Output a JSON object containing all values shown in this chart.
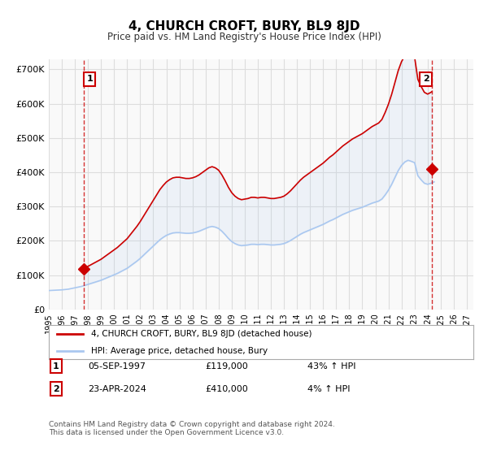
{
  "title": "4, CHURCH CROFT, BURY, BL9 8JD",
  "subtitle": "Price paid vs. HM Land Registry's House Price Index (HPI)",
  "ylabel": "",
  "xlim_start": 1995.0,
  "xlim_end": 2027.5,
  "ylim": [
    0,
    730000
  ],
  "yticks": [
    0,
    100000,
    200000,
    300000,
    400000,
    500000,
    600000,
    700000
  ],
  "ytick_labels": [
    "£0",
    "£100K",
    "£200K",
    "£300K",
    "£400K",
    "£500K",
    "£600K",
    "£700K"
  ],
  "xticks": [
    1995,
    1996,
    1997,
    1998,
    1999,
    2000,
    2001,
    2002,
    2003,
    2004,
    2005,
    2006,
    2007,
    2008,
    2009,
    2010,
    2011,
    2012,
    2013,
    2014,
    2015,
    2016,
    2017,
    2018,
    2019,
    2020,
    2021,
    2022,
    2023,
    2024,
    2025,
    2026,
    2027
  ],
  "background_color": "#ffffff",
  "plot_bg_color": "#f9f9f9",
  "grid_color": "#dddddd",
  "hpi_line_color": "#aac8f0",
  "price_line_color": "#cc0000",
  "marker1_color": "#cc0000",
  "marker2_color": "#cc0000",
  "dashed_line_color": "#cc0000",
  "sale1_year": 1997.68,
  "sale1_price": 119000,
  "sale2_year": 2024.31,
  "sale2_price": 410000,
  "legend_label1": "4, CHURCH CROFT, BURY, BL9 8JD (detached house)",
  "legend_label2": "HPI: Average price, detached house, Bury",
  "annotation1_label": "1",
  "annotation2_label": "2",
  "table_row1": [
    "1",
    "05-SEP-1997",
    "£119,000",
    "43% ↑ HPI"
  ],
  "table_row2": [
    "2",
    "23-APR-2024",
    "£410,000",
    "4% ↑ HPI"
  ],
  "footer": "Contains HM Land Registry data © Crown copyright and database right 2024.\nThis data is licensed under the Open Government Licence v3.0.",
  "hpi_data_x": [
    1995.0,
    1995.25,
    1995.5,
    1995.75,
    1996.0,
    1996.25,
    1996.5,
    1996.75,
    1997.0,
    1997.25,
    1997.5,
    1997.75,
    1998.0,
    1998.25,
    1998.5,
    1998.75,
    1999.0,
    1999.25,
    1999.5,
    1999.75,
    2000.0,
    2000.25,
    2000.5,
    2000.75,
    2001.0,
    2001.25,
    2001.5,
    2001.75,
    2002.0,
    2002.25,
    2002.5,
    2002.75,
    2003.0,
    2003.25,
    2003.5,
    2003.75,
    2004.0,
    2004.25,
    2004.5,
    2004.75,
    2005.0,
    2005.25,
    2005.5,
    2005.75,
    2006.0,
    2006.25,
    2006.5,
    2006.75,
    2007.0,
    2007.25,
    2007.5,
    2007.75,
    2008.0,
    2008.25,
    2008.5,
    2008.75,
    2009.0,
    2009.25,
    2009.5,
    2009.75,
    2010.0,
    2010.25,
    2010.5,
    2010.75,
    2011.0,
    2011.25,
    2011.5,
    2011.75,
    2012.0,
    2012.25,
    2012.5,
    2012.75,
    2013.0,
    2013.25,
    2013.5,
    2013.75,
    2014.0,
    2014.25,
    2014.5,
    2014.75,
    2015.0,
    2015.25,
    2015.5,
    2015.75,
    2016.0,
    2016.25,
    2016.5,
    2016.75,
    2017.0,
    2017.25,
    2017.5,
    2017.75,
    2018.0,
    2018.25,
    2018.5,
    2018.75,
    2019.0,
    2019.25,
    2019.5,
    2019.75,
    2020.0,
    2020.25,
    2020.5,
    2020.75,
    2021.0,
    2021.25,
    2021.5,
    2021.75,
    2022.0,
    2022.25,
    2022.5,
    2022.75,
    2023.0,
    2023.25,
    2023.5,
    2023.75,
    2024.0,
    2024.25,
    2024.5
  ],
  "hpi_data_y": [
    55000,
    55500,
    56000,
    56500,
    57000,
    58000,
    59000,
    61000,
    63000,
    65000,
    67000,
    70000,
    73000,
    76000,
    79000,
    82000,
    85000,
    89000,
    93000,
    97000,
    101000,
    105000,
    110000,
    115000,
    120000,
    127000,
    134000,
    141000,
    149000,
    158000,
    167000,
    176000,
    185000,
    194000,
    203000,
    210000,
    216000,
    220000,
    223000,
    224000,
    224000,
    223000,
    222000,
    222000,
    223000,
    225000,
    228000,
    232000,
    236000,
    240000,
    242000,
    240000,
    236000,
    228000,
    218000,
    207000,
    198000,
    192000,
    188000,
    186000,
    187000,
    188000,
    190000,
    190000,
    189000,
    190000,
    190000,
    189000,
    188000,
    188000,
    189000,
    190000,
    192000,
    196000,
    201000,
    207000,
    213000,
    219000,
    224000,
    228000,
    232000,
    236000,
    240000,
    244000,
    248000,
    253000,
    258000,
    262000,
    267000,
    272000,
    277000,
    281000,
    285000,
    289000,
    292000,
    295000,
    298000,
    302000,
    306000,
    310000,
    313000,
    316000,
    322000,
    334000,
    348000,
    365000,
    385000,
    405000,
    420000,
    430000,
    435000,
    432000,
    428000,
    390000,
    378000,
    368000,
    365000,
    368000,
    372000
  ],
  "price_data_x": [
    1997.68,
    1997.68,
    2024.31
  ],
  "price_data_y": [
    119000,
    119000,
    410000
  ],
  "hpi_indexed_x": [
    1997.68,
    1998.0,
    1998.25,
    1998.5,
    1998.75,
    1999.0,
    1999.25,
    1999.5,
    1999.75,
    2000.0,
    2000.25,
    2000.5,
    2000.75,
    2001.0,
    2001.25,
    2001.5,
    2001.75,
    2002.0,
    2002.25,
    2002.5,
    2002.75,
    2003.0,
    2003.25,
    2003.5,
    2003.75,
    2004.0,
    2004.25,
    2004.5,
    2004.75,
    2005.0,
    2005.25,
    2005.5,
    2005.75,
    2006.0,
    2006.25,
    2006.5,
    2006.75,
    2007.0,
    2007.25,
    2007.5,
    2007.75,
    2008.0,
    2008.25,
    2008.5,
    2008.75,
    2009.0,
    2009.25,
    2009.5,
    2009.75,
    2010.0,
    2010.25,
    2010.5,
    2010.75,
    2011.0,
    2011.25,
    2011.5,
    2011.75,
    2012.0,
    2012.25,
    2012.5,
    2012.75,
    2013.0,
    2013.25,
    2013.5,
    2013.75,
    2014.0,
    2014.25,
    2014.5,
    2014.75,
    2015.0,
    2015.25,
    2015.5,
    2015.75,
    2016.0,
    2016.25,
    2016.5,
    2016.75,
    2017.0,
    2017.25,
    2017.5,
    2017.75,
    2018.0,
    2018.25,
    2018.5,
    2018.75,
    2019.0,
    2019.25,
    2019.5,
    2019.75,
    2020.0,
    2020.25,
    2020.5,
    2020.75,
    2021.0,
    2021.25,
    2021.5,
    2021.75,
    2022.0,
    2022.25,
    2022.5,
    2022.75,
    2023.0,
    2023.25,
    2023.5,
    2023.75,
    2024.0,
    2024.25,
    2024.31
  ],
  "hpi_indexed_y_base": 68500
}
